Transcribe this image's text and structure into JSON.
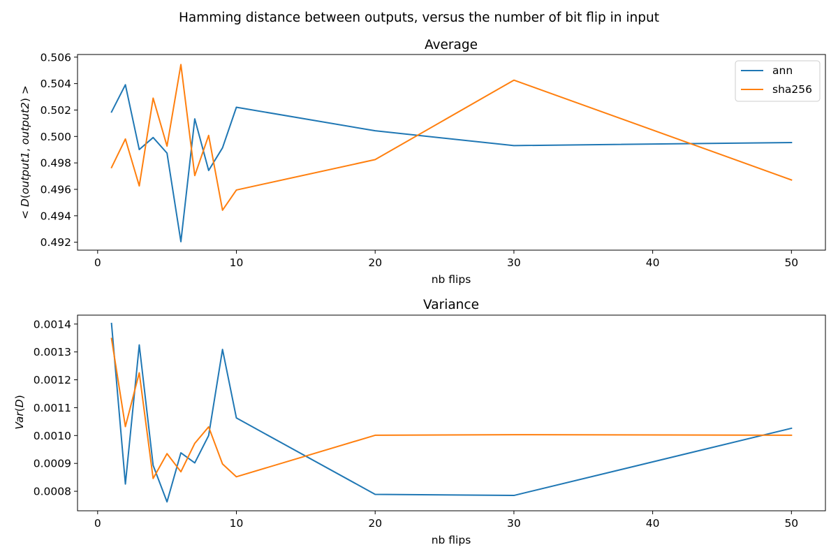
{
  "figure": {
    "suptitle": "Hamming distance between outputs, versus the number of bit flip in input"
  },
  "chart_data": [
    {
      "type": "line",
      "title": "Average",
      "xlabel": "nb flips",
      "ylabel": "< D(output1, output2) >",
      "ylabel_parts": [
        "< ",
        "D",
        "(",
        "output1",
        ", ",
        "output2",
        ") >"
      ],
      "xlim": [
        -1.45,
        52.45
      ],
      "ylim": [
        0.4914,
        0.5062
      ],
      "xticks": [
        0,
        10,
        20,
        30,
        40,
        50
      ],
      "xtick_labels": [
        "0",
        "10",
        "20",
        "30",
        "40",
        "50"
      ],
      "yticks": [
        0.492,
        0.494,
        0.496,
        0.498,
        0.5,
        0.502,
        0.504,
        0.506
      ],
      "ytick_labels": [
        "0.492",
        "0.494",
        "0.496",
        "0.498",
        "0.500",
        "0.502",
        "0.504",
        "0.506"
      ],
      "x": [
        1,
        2,
        3,
        4,
        5,
        6,
        7,
        8,
        9,
        10,
        20,
        30,
        50
      ],
      "series": [
        {
          "name": "ann",
          "color": "#1f77b4",
          "values": [
            0.50185,
            0.50391,
            0.49901,
            0.49992,
            0.49874,
            0.49204,
            0.50133,
            0.49743,
            0.49914,
            0.50221,
            0.50043,
            0.49931,
            0.49954
          ]
        },
        {
          "name": "sha256",
          "color": "#ff7f0e",
          "values": [
            0.49765,
            0.49981,
            0.49626,
            0.5029,
            0.49927,
            0.50544,
            0.49704,
            0.50008,
            0.49442,
            0.49595,
            0.49825,
            0.50426,
            0.49671
          ]
        }
      ],
      "legend": "upper right",
      "grid": false
    },
    {
      "type": "line",
      "title": "Variance",
      "xlabel": "nb flips",
      "ylabel": "Var(D)",
      "ylabel_parts": [
        "Var",
        "(",
        "D",
        ")"
      ],
      "xlim": [
        -1.45,
        52.45
      ],
      "ylim": [
        0.00073,
        0.001432
      ],
      "xticks": [
        0,
        10,
        20,
        30,
        40,
        50
      ],
      "xtick_labels": [
        "0",
        "10",
        "20",
        "30",
        "40",
        "50"
      ],
      "yticks": [
        0.0008,
        0.0009,
        0.001,
        0.0011,
        0.0012,
        0.0013,
        0.0014
      ],
      "ytick_labels": [
        "0.0008",
        "0.0009",
        "0.0010",
        "0.0011",
        "0.0012",
        "0.0013",
        "0.0014"
      ],
      "x": [
        1,
        2,
        3,
        4,
        5,
        6,
        7,
        8,
        9,
        10,
        20,
        30,
        50
      ],
      "series": [
        {
          "name": "ann",
          "color": "#1f77b4",
          "values": [
            0.001402,
            0.000826,
            0.001325,
            0.000893,
            0.000762,
            0.000938,
            0.000902,
            0.001,
            0.001309,
            0.001063,
            0.000789,
            0.000785,
            0.001026
          ]
        },
        {
          "name": "sha256",
          "color": "#ff7f0e",
          "values": [
            0.001348,
            0.001032,
            0.001225,
            0.000846,
            0.000935,
            0.00087,
            0.000972,
            0.001031,
            0.000898,
            0.000852,
            0.001001,
            0.001003,
            0.001001
          ]
        }
      ],
      "legend": "none",
      "grid": false
    }
  ]
}
